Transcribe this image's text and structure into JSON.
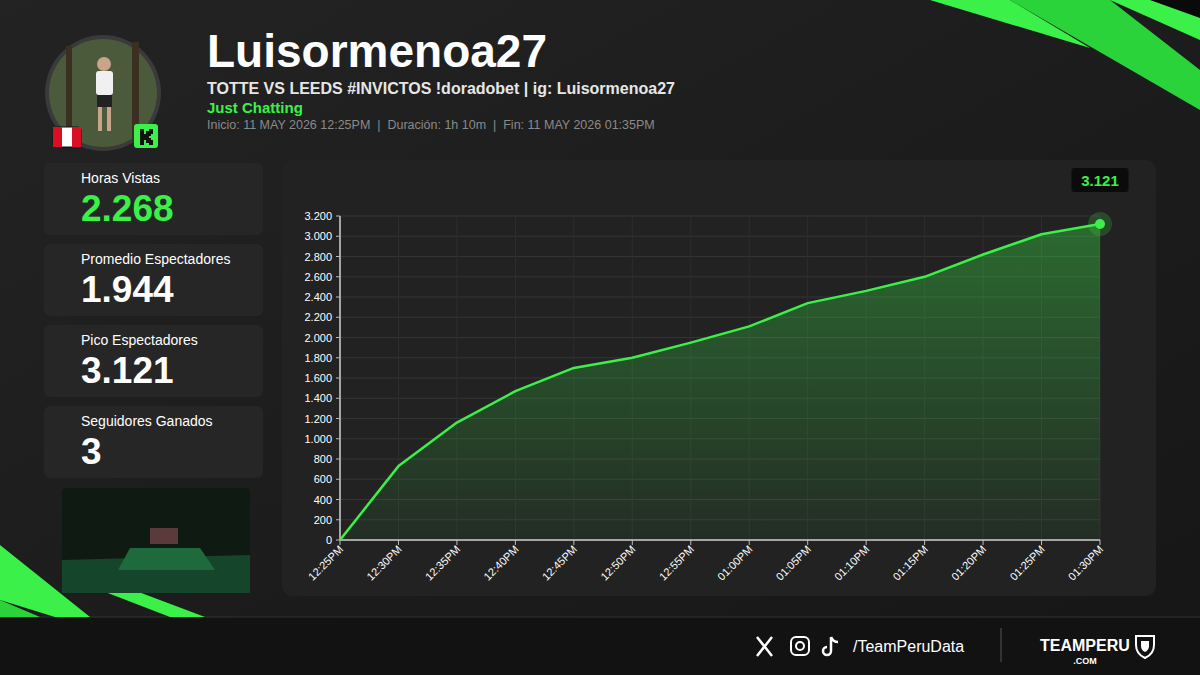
{
  "header": {
    "username": "Luisormenoa27",
    "title": "TOTTE VS LEEDS #INVICTOS !doradobet | ig: Luisormenoa27",
    "category": "Just Chatting",
    "info": "Inicio: 11 MAY 2026 12:25PM  |  Duración: 1h 10m  |  Fin: 11 MAY 2026 01:35PM"
  },
  "stats": [
    {
      "label": "Horas Vistas",
      "value": "2.268"
    },
    {
      "label": "Promedio Espectadores",
      "value": "1.944"
    },
    {
      "label": "Pico Espectadores",
      "value": "3.121"
    },
    {
      "label": "Seguidores Ganados",
      "value": "3"
    }
  ],
  "footer": {
    "handle": "/TeamPeruData",
    "brand": "TEAMPERU",
    "brand_suffix": ".COM"
  },
  "chart_data": {
    "type": "line",
    "color": "#3cf04a",
    "grid": true,
    "categories": [
      "12:25PM",
      "12:30PM",
      "12:35PM",
      "12:40PM",
      "12:45PM",
      "12:50PM",
      "12:55PM",
      "01:00PM",
      "01:05PM",
      "01:10PM",
      "01:15PM",
      "01:20PM",
      "01:25PM",
      "01:30PM"
    ],
    "values": [
      0,
      730,
      1160,
      1470,
      1700,
      1800,
      1950,
      2110,
      2340,
      2460,
      2600,
      2820,
      3020,
      3121
    ],
    "ylim": [
      0,
      3200
    ],
    "yticks": [
      0,
      200,
      400,
      600,
      800,
      {
        "value": 1000,
        "label": "1.000"
      },
      {
        "value": 1200,
        "label": "1.200"
      },
      {
        "value": 1400,
        "label": "1.400"
      },
      {
        "value": 1600,
        "label": "1.600"
      },
      {
        "value": 1800,
        "label": "1.800"
      },
      {
        "value": 2000,
        "label": "2.000"
      },
      {
        "value": 2200,
        "label": "2.200"
      },
      {
        "value": 2400,
        "label": "2.400"
      },
      {
        "value": 2600,
        "label": "2.600"
      },
      {
        "value": 2800,
        "label": "2.800"
      },
      {
        "value": 3000,
        "label": "3.000"
      },
      {
        "value": 3200,
        "label": "3.200"
      }
    ],
    "annotations": [
      {
        "x": "01:30PM",
        "y": 3121,
        "text": "3.121"
      }
    ]
  }
}
